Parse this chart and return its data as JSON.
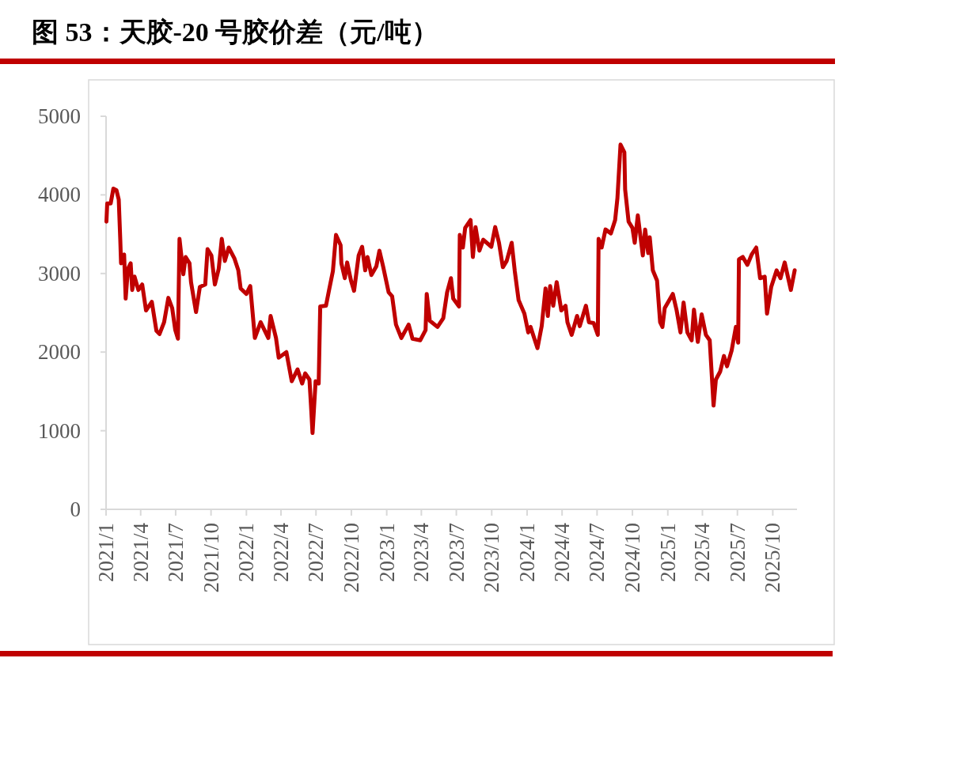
{
  "chart_data": {
    "type": "line",
    "title": "图 53：天胶-20 号胶价差（元/吨）",
    "xlim": [
      "2021-01-01",
      "2025-12-03"
    ],
    "ylim": [
      0,
      5000
    ],
    "yticks": [
      0,
      1000,
      2000,
      3000,
      4000,
      5000
    ],
    "xticks": [
      {
        "value": "2021-01-01",
        "label": "2021/1"
      },
      {
        "value": "2021-04-01",
        "label": "2021/4"
      },
      {
        "value": "2021-07-01",
        "label": "2021/7"
      },
      {
        "value": "2021-10-01",
        "label": "2021/10"
      },
      {
        "value": "2022-01-01",
        "label": "2022/1"
      },
      {
        "value": "2022-04-01",
        "label": "2022/4"
      },
      {
        "value": "2022-07-01",
        "label": "2022/7"
      },
      {
        "value": "2022-10-01",
        "label": "2022/10"
      },
      {
        "value": "2023-01-01",
        "label": "2023/1"
      },
      {
        "value": "2023-04-01",
        "label": "2023/4"
      },
      {
        "value": "2023-07-01",
        "label": "2023/7"
      },
      {
        "value": "2023-10-01",
        "label": "2023/10"
      },
      {
        "value": "2024-01-01",
        "label": "2024/1"
      },
      {
        "value": "2024-04-01",
        "label": "2024/4"
      },
      {
        "value": "2024-07-01",
        "label": "2024/7"
      },
      {
        "value": "2024-10-01",
        "label": "2024/10"
      },
      {
        "value": "2025-01-01",
        "label": "2025/1"
      },
      {
        "value": "2025-04-01",
        "label": "2025/4"
      },
      {
        "value": "2025-07-01",
        "label": "2025/7"
      },
      {
        "value": "2025-10-01",
        "label": "2025/10"
      }
    ],
    "x": [
      "2021-01-02",
      "2021-01-04",
      "2021-01-13",
      "2021-01-20",
      "2021-01-28",
      "2021-02-03",
      "2021-02-07",
      "2021-02-09",
      "2021-02-17",
      "2021-02-21",
      "2021-02-27",
      "2021-03-06",
      "2021-03-10",
      "2021-03-16",
      "2021-03-26",
      "2021-04-05",
      "2021-04-15",
      "2021-04-30",
      "2021-05-12",
      "2021-05-20",
      "2021-06-01",
      "2021-06-12",
      "2021-06-22",
      "2021-06-30",
      "2021-07-07",
      "2021-07-11",
      "2021-07-21",
      "2021-07-27",
      "2021-08-06",
      "2021-08-10",
      "2021-08-23",
      "2021-09-02",
      "2021-09-16",
      "2021-09-22",
      "2021-10-02",
      "2021-10-11",
      "2021-10-21",
      "2021-10-29",
      "2021-11-06",
      "2021-11-16",
      "2021-12-01",
      "2021-12-11",
      "2021-12-17",
      "2022-01-01",
      "2022-01-11",
      "2022-01-23",
      "2022-02-07",
      "2022-02-27",
      "2022-03-05",
      "2022-03-19",
      "2022-03-26",
      "2022-04-15",
      "2022-04-29",
      "2022-05-14",
      "2022-05-26",
      "2022-06-03",
      "2022-06-14",
      "2022-06-18",
      "2022-06-22",
      "2022-06-30",
      "2022-07-08",
      "2022-07-12",
      "2022-07-27",
      "2022-08-04",
      "2022-08-14",
      "2022-08-22",
      "2022-09-03",
      "2022-09-05",
      "2022-09-14",
      "2022-09-20",
      "2022-09-30",
      "2022-10-08",
      "2022-10-20",
      "2022-10-29",
      "2022-11-06",
      "2022-11-12",
      "2022-11-22",
      "2022-12-05",
      "2022-12-13",
      "2022-12-23",
      "2023-01-06",
      "2023-01-15",
      "2023-01-25",
      "2023-02-08",
      "2023-02-27",
      "2023-03-09",
      "2023-03-29",
      "2023-04-12",
      "2023-04-15",
      "2023-04-23",
      "2023-05-13",
      "2023-05-28",
      "2023-06-07",
      "2023-06-17",
      "2023-06-23",
      "2023-07-08",
      "2023-07-10",
      "2023-07-18",
      "2023-07-24",
      "2023-08-07",
      "2023-08-13",
      "2023-08-20",
      "2023-08-30",
      "2023-09-09",
      "2023-09-30",
      "2023-10-10",
      "2023-10-20",
      "2023-10-30",
      "2023-11-09",
      "2023-11-22",
      "2023-11-30",
      "2023-12-10",
      "2023-12-25",
      "2024-01-04",
      "2024-01-10",
      "2024-01-28",
      "2024-02-08",
      "2024-02-18",
      "2024-02-24",
      "2024-03-01",
      "2024-03-09",
      "2024-03-18",
      "2024-03-30",
      "2024-04-10",
      "2024-04-15",
      "2024-04-26",
      "2024-05-10",
      "2024-05-17",
      "2024-06-02",
      "2024-06-10",
      "2024-06-22",
      "2024-07-03",
      "2024-07-05",
      "2024-07-13",
      "2024-07-23",
      "2024-08-06",
      "2024-08-17",
      "2024-08-23",
      "2024-08-31",
      "2024-09-10",
      "2024-09-12",
      "2024-09-21",
      "2024-10-01",
      "2024-10-07",
      "2024-10-15",
      "2024-10-28",
      "2024-11-03",
      "2024-11-11",
      "2024-11-15",
      "2024-11-23",
      "2024-12-04",
      "2024-12-12",
      "2024-12-18",
      "2024-12-24",
      "2025-01-14",
      "2025-01-24",
      "2025-02-03",
      "2025-02-11",
      "2025-02-21",
      "2025-03-04",
      "2025-03-10",
      "2025-03-20",
      "2025-03-30",
      "2025-04-10",
      "2025-04-20",
      "2025-04-30",
      "2025-05-06",
      "2025-05-17",
      "2025-05-27",
      "2025-06-04",
      "2025-06-16",
      "2025-06-27",
      "2025-07-03",
      "2025-07-05",
      "2025-07-15",
      "2025-07-27",
      "2025-08-07",
      "2025-08-19",
      "2025-08-29",
      "2025-09-10",
      "2025-09-16",
      "2025-09-27",
      "2025-10-11",
      "2025-10-21",
      "2025-11-01",
      "2025-11-17",
      "2025-11-27"
    ],
    "series": [
      {
        "color": "#c00000",
        "values": [
          3660,
          3890,
          3890,
          4080,
          4060,
          3940,
          3430,
          3130,
          3240,
          2680,
          3060,
          3130,
          2790,
          2960,
          2790,
          2860,
          2530,
          2640,
          2270,
          2230,
          2380,
          2690,
          2560,
          2280,
          2170,
          3440,
          2990,
          3210,
          3130,
          2890,
          2510,
          2830,
          2860,
          3310,
          3230,
          2860,
          3060,
          3440,
          3160,
          3330,
          3190,
          3040,
          2810,
          2740,
          2840,
          2180,
          2380,
          2180,
          2460,
          2180,
          1930,
          2000,
          1630,
          1780,
          1600,
          1730,
          1650,
          1320,
          970,
          1630,
          1600,
          2580,
          2590,
          2790,
          3030,
          3490,
          3360,
          3130,
          2940,
          3140,
          2910,
          2780,
          3230,
          3340,
          3040,
          3210,
          2980,
          3090,
          3290,
          3080,
          2760,
          2710,
          2350,
          2180,
          2350,
          2170,
          2150,
          2280,
          2740,
          2400,
          2320,
          2430,
          2760,
          2940,
          2680,
          2580,
          3490,
          3330,
          3580,
          3680,
          3210,
          3590,
          3290,
          3430,
          3340,
          3590,
          3390,
          3080,
          3160,
          3390,
          3030,
          2660,
          2490,
          2250,
          2320,
          2050,
          2330,
          2810,
          2460,
          2840,
          2590,
          2890,
          2530,
          2590,
          2380,
          2220,
          2460,
          2330,
          2590,
          2380,
          2370,
          2220,
          3440,
          3330,
          3560,
          3510,
          3680,
          3960,
          4640,
          4540,
          4070,
          3660,
          3580,
          3390,
          3740,
          3230,
          3560,
          3260,
          3460,
          3040,
          2910,
          2380,
          2320,
          2560,
          2740,
          2530,
          2250,
          2630,
          2250,
          2150,
          2540,
          2130,
          2480,
          2220,
          2150,
          1320,
          1650,
          1750,
          1950,
          1820,
          2020,
          2320,
          2120,
          3180,
          3210,
          3110,
          3240,
          3330,
          2940,
          2960,
          2490,
          2830,
          3040,
          2940,
          3140,
          2790,
          3040
        ]
      }
    ]
  }
}
